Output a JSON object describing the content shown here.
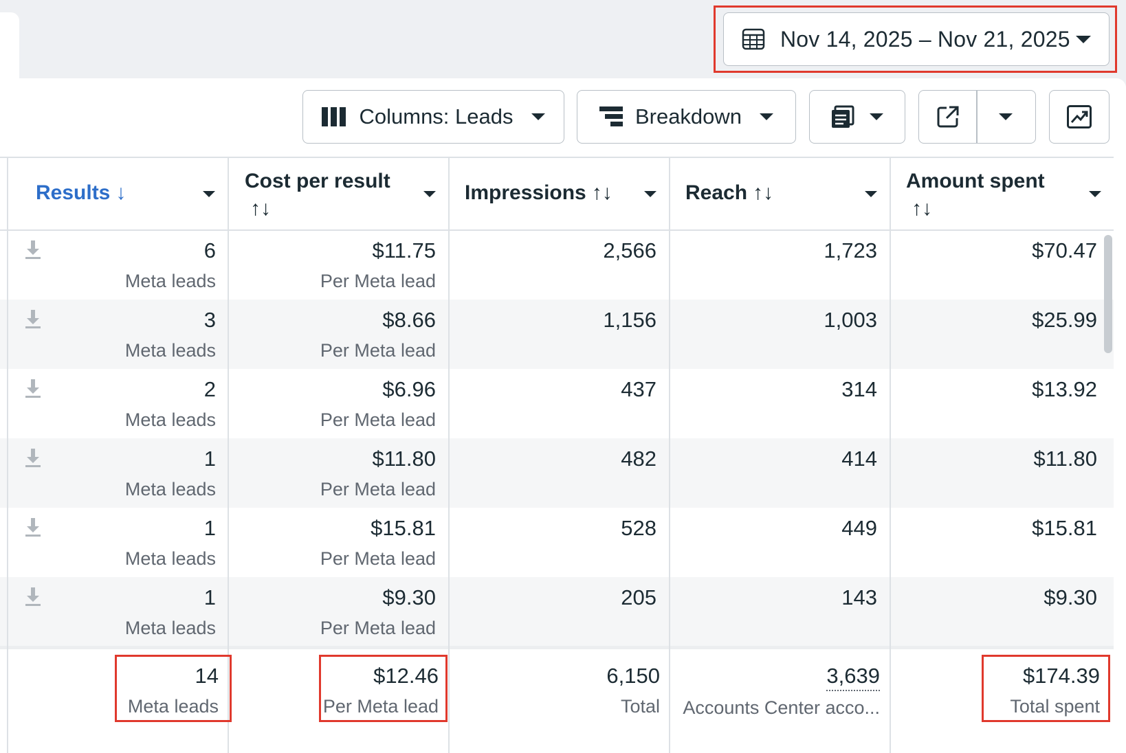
{
  "date_range": {
    "label": "Nov 14, 2025 – Nov 21, 2025",
    "icon": "calendar-icon"
  },
  "toolbar": {
    "columns_label": "Columns: Leads",
    "breakdown_label": "Breakdown",
    "reports_icon": "reports-icon",
    "export_icon": "export-icon",
    "chart_icon": "chart-icon"
  },
  "columns": [
    {
      "key": "results",
      "label": "Results",
      "sort": "↓"
    },
    {
      "key": "cost_per_result",
      "label": "Cost per result",
      "sort": "↑↓"
    },
    {
      "key": "impressions",
      "label": "Impressions",
      "sort": "↑↓"
    },
    {
      "key": "reach",
      "label": "Reach",
      "sort": "↑↓"
    },
    {
      "key": "amount_spent",
      "label": "Amount spent",
      "sort": "↑↓"
    }
  ],
  "rows": [
    {
      "results": "6",
      "results_sub": "Meta leads",
      "cost": "$11.75",
      "cost_sub": "Per Meta lead",
      "impressions": "2,566",
      "reach": "1,723",
      "spent": "$70.47"
    },
    {
      "results": "3",
      "results_sub": "Meta leads",
      "cost": "$8.66",
      "cost_sub": "Per Meta lead",
      "impressions": "1,156",
      "reach": "1,003",
      "spent": "$25.99"
    },
    {
      "results": "2",
      "results_sub": "Meta leads",
      "cost": "$6.96",
      "cost_sub": "Per Meta lead",
      "impressions": "437",
      "reach": "314",
      "spent": "$13.92"
    },
    {
      "results": "1",
      "results_sub": "Meta leads",
      "cost": "$11.80",
      "cost_sub": "Per Meta lead",
      "impressions": "482",
      "reach": "414",
      "spent": "$11.80"
    },
    {
      "results": "1",
      "results_sub": "Meta leads",
      "cost": "$15.81",
      "cost_sub": "Per Meta lead",
      "impressions": "528",
      "reach": "449",
      "spent": "$15.81"
    },
    {
      "results": "1",
      "results_sub": "Meta leads",
      "cost": "$9.30",
      "cost_sub": "Per Meta lead",
      "impressions": "205",
      "reach": "143",
      "spent": "$9.30"
    }
  ],
  "totals": {
    "results": "14",
    "results_sub": "Meta leads",
    "cost": "$12.46",
    "cost_sub": "Per Meta lead",
    "impressions": "6,150",
    "impressions_sub": "Total",
    "reach": "3,639",
    "reach_sub": "Accounts Center acco...",
    "spent": "$174.39",
    "spent_sub": "Total spent"
  },
  "colors": {
    "highlight": "#e0392d",
    "sorted_header": "#2d6ec9",
    "text": "#1c2b33",
    "muted": "#606770"
  }
}
